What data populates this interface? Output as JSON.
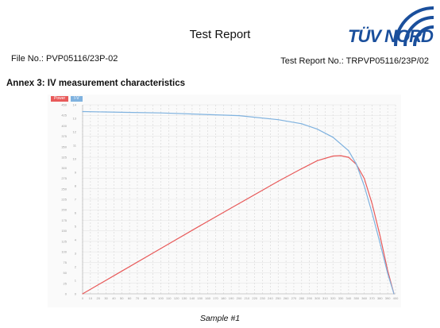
{
  "header": {
    "title": "Test Report",
    "file_no": "File No.: PVP05116/23P-02",
    "report_no": "Test Report No.: TRPVP05116/23P/02",
    "logo_text": "TÜV NORD"
  },
  "annex_title": "Annex 3: IV measurement characteristics",
  "caption": "Sample #1",
  "chart_data": {
    "type": "line",
    "title": "",
    "xlabel": "",
    "ylabel": "",
    "xlim": [
      0,
      400
    ],
    "ylim_left": [
      0,
      450
    ],
    "ylim_right": [
      0,
      14
    ],
    "x_ticks": [
      0,
      10,
      20,
      30,
      40,
      50,
      60,
      70,
      80,
      90,
      100,
      110,
      120,
      130,
      140,
      150,
      160,
      170,
      180,
      190,
      200,
      210,
      220,
      230,
      240,
      250,
      260,
      270,
      280,
      290,
      300,
      310,
      320,
      330,
      340,
      350,
      360,
      370,
      380,
      390,
      400
    ],
    "left_ticks": [
      0,
      25,
      50,
      75,
      100,
      125,
      150,
      175,
      200,
      225,
      250,
      275,
      300,
      325,
      350,
      375,
      400,
      425,
      450
    ],
    "right_ticks": [
      0,
      1,
      2,
      3,
      4,
      5,
      6,
      7,
      8,
      9,
      10,
      11,
      12,
      13,
      14
    ],
    "legend": [
      "Power",
      "I-V"
    ],
    "grid": true,
    "series": [
      {
        "name": "Power",
        "color": "#e85a5a",
        "axis": "left",
        "x": [
          0,
          50,
          100,
          150,
          200,
          250,
          280,
          300,
          320,
          330,
          340,
          350,
          360,
          370,
          380,
          390,
          398
        ],
        "y": [
          0,
          54,
          108,
          162,
          215,
          268,
          298,
          317,
          328,
          329,
          325,
          308,
          275,
          215,
          140,
          55,
          0
        ]
      },
      {
        "name": "I-V",
        "color": "#7fb2df",
        "axis": "right",
        "x": [
          0,
          50,
          100,
          150,
          200,
          250,
          280,
          300,
          320,
          340,
          350,
          360,
          370,
          380,
          390,
          398
        ],
        "y": [
          13.5,
          13.45,
          13.4,
          13.3,
          13.2,
          12.9,
          12.6,
          12.2,
          11.6,
          10.6,
          9.6,
          8.0,
          6.0,
          3.8,
          1.5,
          0
        ]
      }
    ]
  }
}
